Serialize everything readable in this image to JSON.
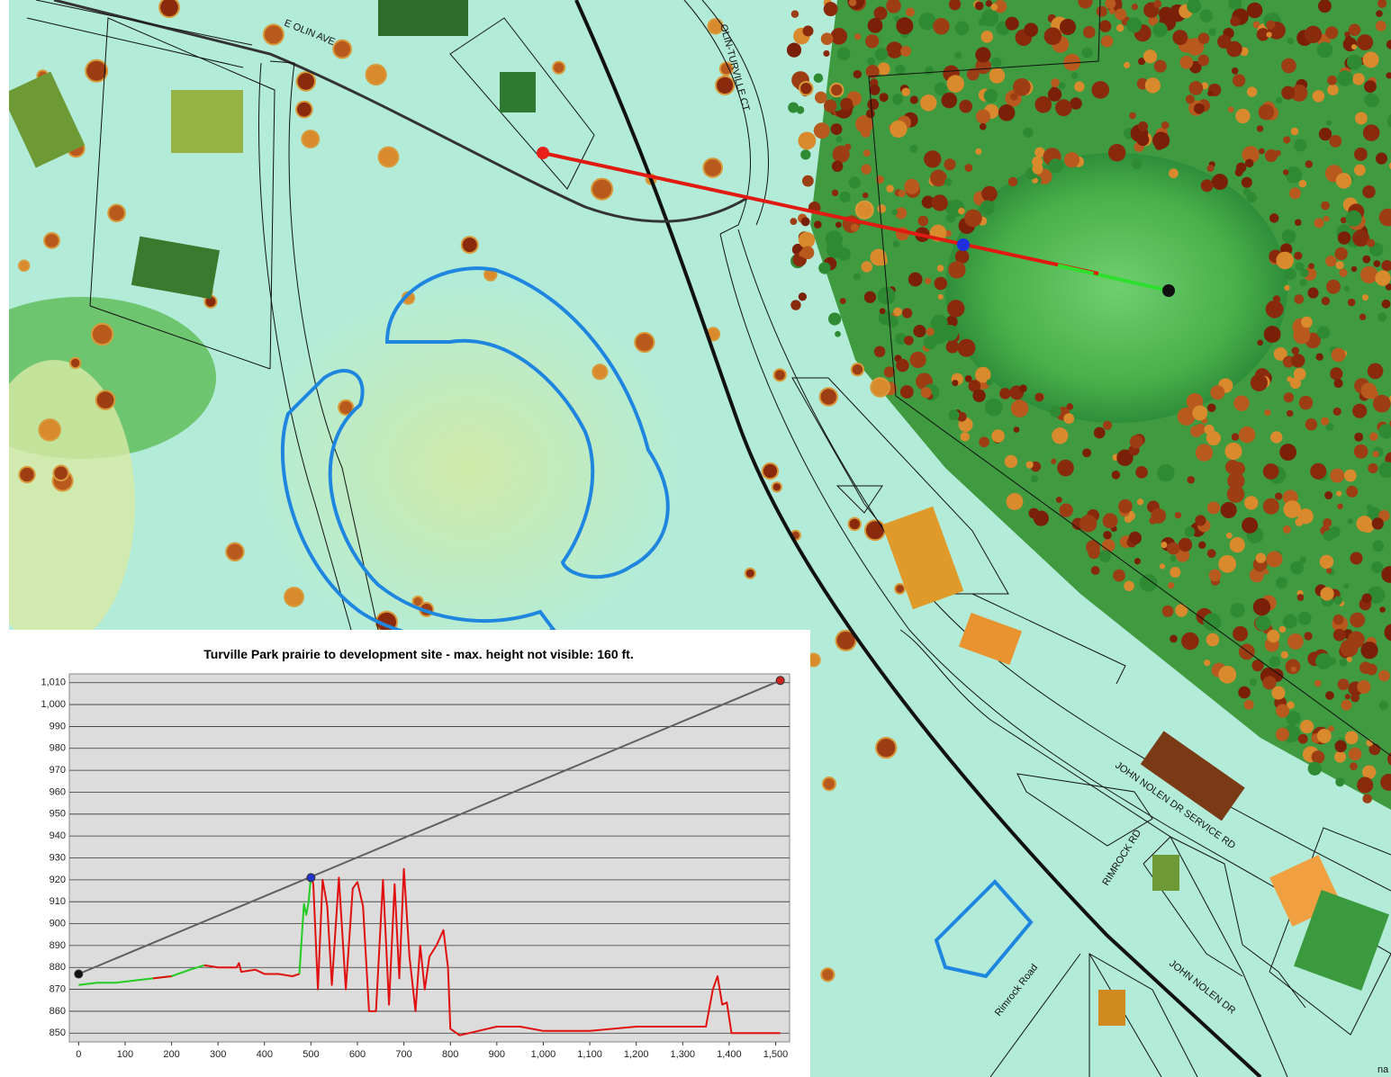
{
  "map_labels": {
    "e_olin_ave": "E OLIN AVE",
    "olin_turville_ct": "OLIN-TURVILLE CT",
    "john_nolen_service_rd": "JOHN NOLEN DR SERVICE RD",
    "rimrock_rd": "RIMROCK RD",
    "rimrock_road": "Rimrock Road",
    "john_nolen_dr": "JOHN NOLEN DR",
    "corner_text": "na"
  },
  "chart_data": {
    "type": "line",
    "title": "Turville Park prairie to development site - max. height not visible: 160 ft.",
    "xlim": [
      -20,
      1530
    ],
    "ylim": [
      846,
      1014
    ],
    "xticks": [
      0,
      100,
      200,
      300,
      400,
      500,
      600,
      700,
      800,
      900,
      {
        "value": 1000,
        "label": "1,000"
      },
      {
        "value": 1100,
        "label": "1,100"
      },
      {
        "value": 1200,
        "label": "1,200"
      },
      {
        "value": 1300,
        "label": "1,300"
      },
      {
        "value": 1400,
        "label": "1,400"
      },
      {
        "value": 1500,
        "label": "1,500"
      }
    ],
    "yticks": [
      850,
      860,
      870,
      880,
      890,
      900,
      910,
      920,
      930,
      940,
      950,
      960,
      970,
      980,
      990,
      {
        "value": 1000,
        "label": "1,000"
      },
      {
        "value": 1010,
        "label": "1,010"
      }
    ],
    "grid": true,
    "x": [
      0,
      40,
      80,
      120,
      160,
      200,
      240,
      270,
      300,
      340,
      345,
      350,
      380,
      400,
      430,
      460,
      475,
      485,
      490,
      495,
      500,
      505,
      515,
      525,
      535,
      545,
      560,
      575,
      590,
      600,
      612,
      625,
      640,
      655,
      668,
      680,
      690,
      700,
      712,
      725,
      735,
      745,
      755,
      770,
      785,
      795,
      800,
      820,
      860,
      900,
      950,
      1000,
      1100,
      1200,
      1300,
      1350,
      1365,
      1375,
      1385,
      1395,
      1405,
      1450,
      1510
    ],
    "series": [
      {
        "color": "#22cc22",
        "values": [
          872,
          873,
          873,
          874,
          875,
          876,
          879,
          881,
          null,
          null,
          null,
          null,
          null,
          null,
          null,
          null,
          877,
          909,
          904,
          910,
          922,
          null,
          null,
          null,
          null,
          null,
          null,
          null,
          null,
          null,
          null,
          null,
          null,
          null,
          null,
          null,
          null,
          null,
          null,
          null,
          null,
          null,
          null,
          null,
          null,
          null,
          null,
          null,
          null,
          null,
          null,
          null,
          null,
          null,
          null,
          null,
          null,
          null,
          null,
          null,
          null,
          null,
          null
        ]
      },
      {
        "color": "#e01010",
        "values": [
          null,
          null,
          null,
          null,
          875,
          876,
          null,
          881,
          880,
          880,
          882,
          878,
          879,
          877,
          877,
          876,
          877,
          null,
          null,
          null,
          922,
          918,
          870,
          920,
          908,
          872,
          921,
          870,
          916,
          919,
          908,
          860,
          860,
          920,
          863,
          918,
          875,
          925,
          885,
          860,
          890,
          870,
          885,
          890,
          897,
          880,
          852,
          849,
          851,
          853,
          853,
          851,
          851,
          853,
          853,
          853,
          870,
          876,
          863,
          864,
          850,
          850,
          850
        ]
      }
    ],
    "sight_line": {
      "color": "#606060",
      "x": [
        0,
        1510
      ],
      "values": [
        877,
        1011
      ]
    },
    "markers": {
      "x": [
        0,
        500,
        1510
      ],
      "values": [
        877,
        921,
        1011
      ],
      "colors": [
        "#111111",
        "#2233cc",
        "#cc2222"
      ]
    }
  }
}
